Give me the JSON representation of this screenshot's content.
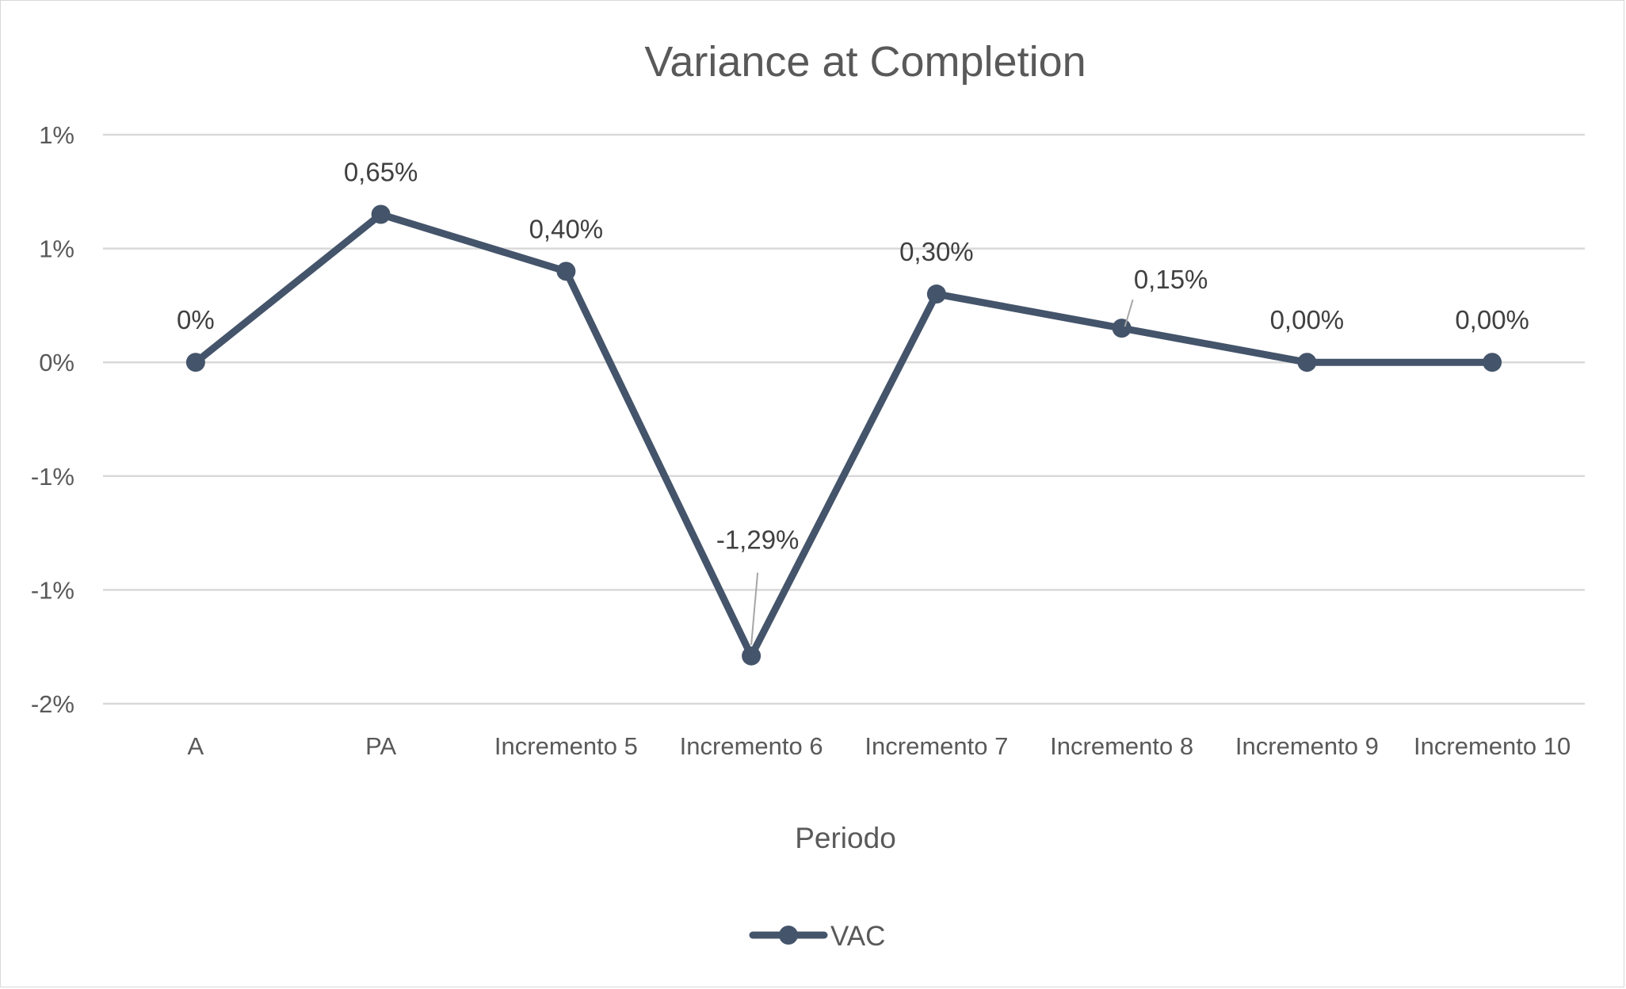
{
  "colors": {
    "series": "#44546a",
    "grid": "#d9d9d9",
    "text": "#595959",
    "label": "#404040",
    "leader": "#a6a6a6"
  },
  "chart_data": {
    "type": "line",
    "title": "Variance at Completion",
    "xlabel": "Periodo",
    "ylabel": "",
    "categories": [
      "A",
      "PA",
      "Incremento 5",
      "Incremento 6",
      "Incremento 7",
      "Incremento 8",
      "Incremento 9",
      "Incremento 10"
    ],
    "series": [
      {
        "name": "VAC",
        "values": [
          0.0,
          0.65,
          0.4,
          -1.29,
          0.3,
          0.15,
          0.0,
          0.0
        ],
        "data_labels": [
          "0%",
          "0,65%",
          "0,40%",
          "-1,29%",
          "0,30%",
          "0,15%",
          "0,00%",
          "0,00%"
        ],
        "marker": "circle"
      }
    ],
    "ylim": [
      -1.5,
      1.0
    ],
    "yticks": [
      1.0,
      0.5,
      0.0,
      -0.5,
      -1.0,
      -1.5
    ],
    "ytick_labels": [
      "1%",
      "1%",
      "0%",
      "-1%",
      "-1%",
      "-2%"
    ],
    "grid": true,
    "legend": {
      "position": "bottom",
      "entries": [
        "VAC"
      ]
    }
  }
}
